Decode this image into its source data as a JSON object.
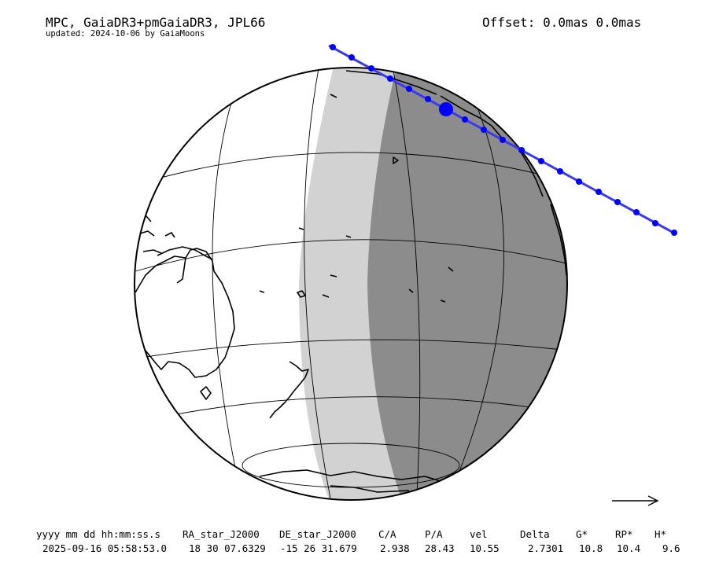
{
  "header": {
    "title": "MPC, GaiaDR3+pmGaiaDR3, JPL66",
    "subtitle": "updated: 2024-10-06 by GaiaMoons",
    "offset": "Offset: 0.0mas 0.0mas"
  },
  "table": {
    "columns": [
      "yyyy mm dd hh:mm:ss.s",
      "RA_star_J2000",
      "DE_star_J2000",
      "C/A",
      "P/A",
      "vel",
      "Delta",
      "G*",
      "RP*",
      "H*"
    ],
    "values": [
      "2025-09-16 05:58:53.0",
      "18 30 07.6329",
      "-15 26 31.679",
      "2.938",
      "28.43",
      "10.55",
      "2.7301",
      "10.8",
      "10.4",
      "9.6"
    ]
  },
  "colors": {
    "night": "#8c8c8c",
    "twilight": "#d2d2d2",
    "day": "#ffffff",
    "path": "#3a3aee",
    "dots": "#0000ff"
  },
  "icons": {
    "direction": "direction-arrow-icon"
  }
}
